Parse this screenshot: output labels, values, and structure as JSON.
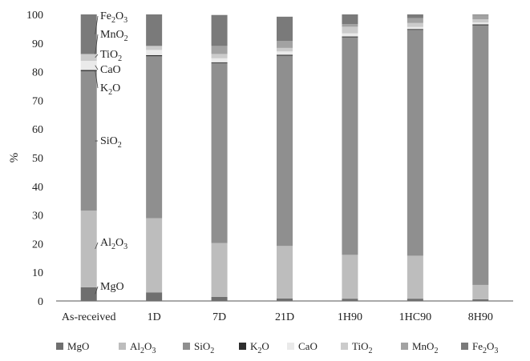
{
  "chart_data": {
    "type": "bar",
    "stacked": true,
    "ylabel": "%",
    "ylim": [
      0,
      100
    ],
    "yticks": [
      0,
      10,
      20,
      30,
      40,
      50,
      60,
      70,
      80,
      90,
      100
    ],
    "categories": [
      "As-received",
      "1D",
      "7D",
      "21D",
      "1H90",
      "1HC90",
      "8H90"
    ],
    "legend_position": "bottom",
    "series": [
      {
        "name": "MgO",
        "label_base": "MgO",
        "label_sub": "",
        "label_tail": "",
        "color": "#6f6f6f",
        "values": [
          4.8,
          3.0,
          1.4,
          0.9,
          0.8,
          0.8,
          0.6
        ]
      },
      {
        "name": "Al2O3",
        "label_base": "Al",
        "label_sub": "2",
        "label_tail": "O3",
        "color": "#bdbdbd",
        "values": [
          26.7,
          25.9,
          18.8,
          18.3,
          15.3,
          15.0,
          5.0
        ]
      },
      {
        "name": "SiO2",
        "label_base": "SiO",
        "label_sub": "2",
        "label_tail": "",
        "color": "#8f8f8f",
        "values": [
          48.7,
          56.5,
          62.8,
          66.4,
          75.9,
          78.8,
          90.6
        ]
      },
      {
        "name": "K2O",
        "label_base": "K",
        "label_sub": "2",
        "label_tail": "O",
        "color": "#2e2e2e",
        "values": [
          0.4,
          0.4,
          0.3,
          0.3,
          0.3,
          0.3,
          0.3
        ]
      },
      {
        "name": "CaO",
        "label_base": "CaO",
        "label_sub": "",
        "label_tail": "",
        "color": "#eaeaea",
        "values": [
          3.2,
          1.8,
          1.4,
          1.2,
          1.1,
          0.7,
          0.7
        ]
      },
      {
        "name": "TiO2",
        "label_base": "TiO",
        "label_sub": "2",
        "label_tail": "",
        "color": "#cbcbcb",
        "values": [
          2.3,
          1.3,
          1.5,
          1.2,
          2.3,
          1.4,
          1.1
        ]
      },
      {
        "name": "MnO2",
        "label_base": "MnO",
        "label_sub": "2",
        "label_tail": "",
        "color": "#a2a2a2",
        "values": [
          0.1,
          0.2,
          2.8,
          2.4,
          0.9,
          1.7,
          1.5
        ]
      },
      {
        "name": "Fe2O3",
        "label_base": "Fe",
        "label_sub": "2",
        "label_tail": "O3",
        "color": "#7a7a7a",
        "values": [
          13.8,
          10.9,
          10.8,
          8.5,
          3.4,
          1.3,
          0.2
        ]
      }
    ],
    "annotations": [
      {
        "series": "Fe2O3",
        "base": "Fe",
        "sub1": "2",
        "mid": "O",
        "sub2": "3"
      },
      {
        "series": "MnO2",
        "base": "MnO",
        "sub1": "2",
        "mid": "",
        "sub2": ""
      },
      {
        "series": "TiO2",
        "base": "TiO",
        "sub1": "2",
        "mid": "",
        "sub2": ""
      },
      {
        "series": "CaO",
        "base": "CaO",
        "sub1": "",
        "mid": "",
        "sub2": ""
      },
      {
        "series": "K2O",
        "base": "K",
        "sub1": "2",
        "mid": "O",
        "sub2": ""
      },
      {
        "series": "SiO2",
        "base": "SiO",
        "sub1": "2",
        "mid": "",
        "sub2": ""
      },
      {
        "series": "Al2O3",
        "base": "Al",
        "sub1": "2",
        "mid": "O",
        "sub2": "3"
      },
      {
        "series": "MgO",
        "base": "MgO",
        "sub1": "",
        "mid": "",
        "sub2": ""
      }
    ]
  }
}
